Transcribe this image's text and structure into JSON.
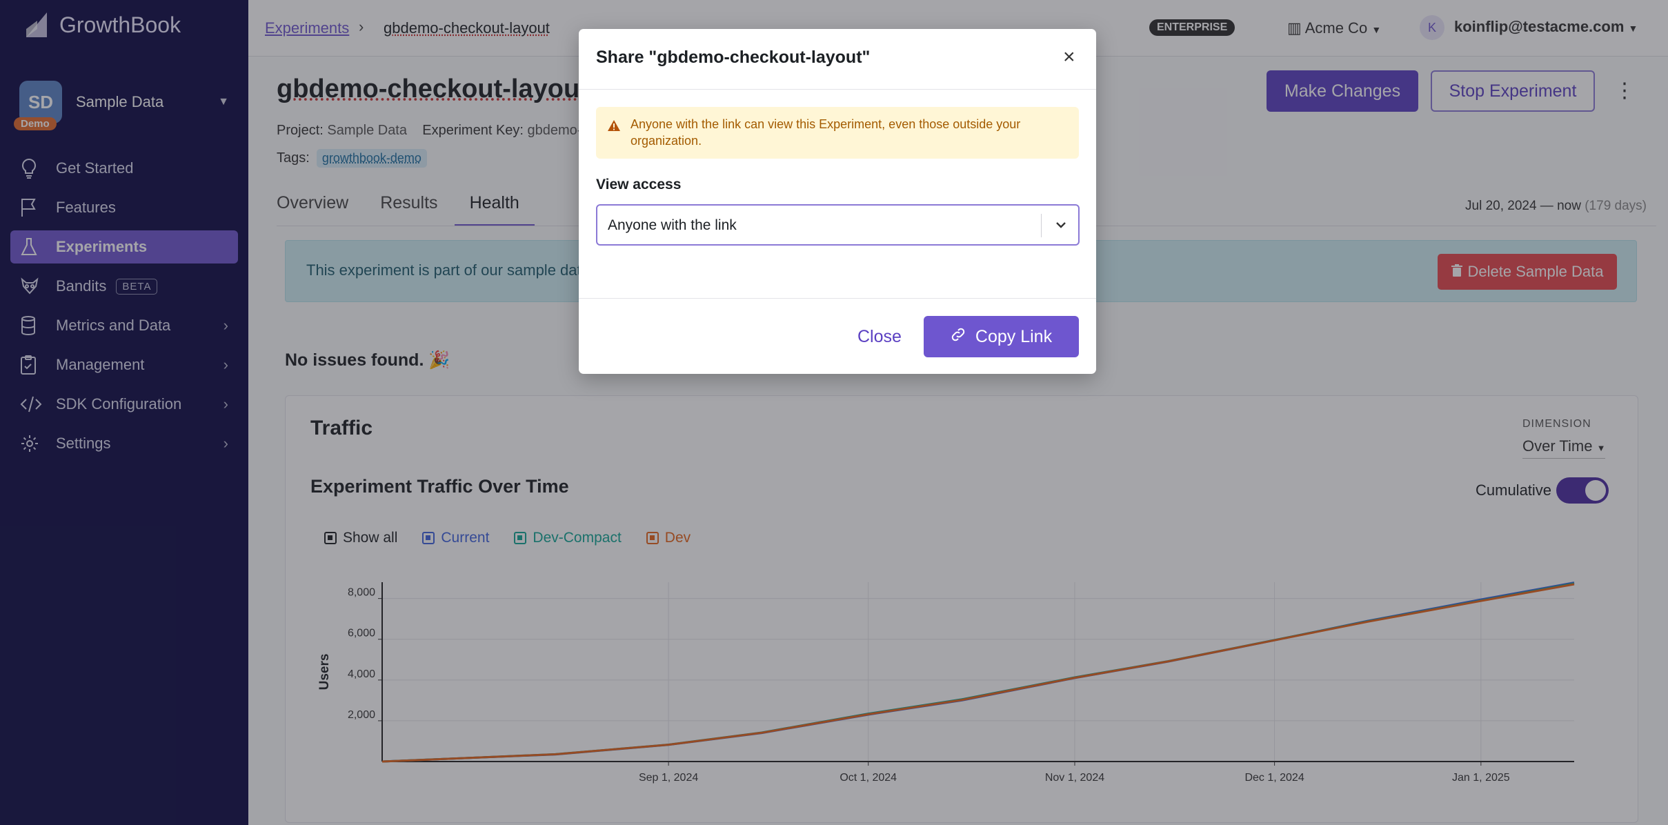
{
  "app": {
    "name": "GrowthBook"
  },
  "org": {
    "initials": "SD",
    "name": "Sample Data",
    "badge": "Demo"
  },
  "sidebar": {
    "items": [
      {
        "label": "Get Started",
        "icon": "lightbulb-icon"
      },
      {
        "label": "Features",
        "icon": "flag-icon"
      },
      {
        "label": "Experiments",
        "icon": "flask-icon"
      },
      {
        "label": "Bandits",
        "icon": "raccoon-icon",
        "badge": "BETA"
      },
      {
        "label": "Metrics and Data",
        "icon": "database-icon"
      },
      {
        "label": "Management",
        "icon": "clipboard-icon"
      },
      {
        "label": "SDK Configuration",
        "icon": "code-icon"
      },
      {
        "label": "Settings",
        "icon": "gear-icon"
      }
    ]
  },
  "topbar": {
    "breadcrumb_link": "Experiments",
    "breadcrumb_current": "gbdemo-checkout-layout",
    "plan_badge": "ENTERPRISE",
    "org_switcher": "Acme Co",
    "user_initial": "K",
    "user_email": "koinflip@testacme.com"
  },
  "experiment": {
    "title": "gbdemo-checkout-layout",
    "project_label": "Project:",
    "project_value": "Sample Data",
    "key_label": "Experiment Key:",
    "key_value": "gbdemo-checkout-layout",
    "tags_label": "Tags:",
    "tag": "growthbook-demo",
    "make_changes": "Make Changes",
    "stop": "Stop Experiment"
  },
  "tabs": [
    {
      "label": "Overview"
    },
    {
      "label": "Results"
    },
    {
      "label": "Health"
    }
  ],
  "date_range": {
    "text": "Jul 20, 2024 — now",
    "days": "(179 days)"
  },
  "banner": {
    "text": "This experiment is part of our sample data",
    "delete_button": "Delete Sample Data"
  },
  "health": {
    "no_issues": "No issues found. 🎉"
  },
  "traffic": {
    "title": "Traffic",
    "dimension_label": "DIMENSION",
    "dimension_value": "Over Time",
    "chart_title": "Experiment Traffic Over Time",
    "cumulative_label": "Cumulative",
    "cumulative_on": true,
    "legend": [
      {
        "label": "Show all",
        "color": "#1c2024"
      },
      {
        "label": "Current",
        "color": "#3e63dd"
      },
      {
        "label": "Dev-Compact",
        "color": "#12a594"
      },
      {
        "label": "Dev",
        "color": "#e5651a"
      }
    ]
  },
  "chart_data": {
    "type": "line",
    "ylabel": "Users",
    "xlabel": "",
    "ylim": [
      0,
      8800
    ],
    "yticks": [
      2000,
      4000,
      6000,
      8000
    ],
    "ytick_labels": [
      "2,000",
      "4,000",
      "6,000",
      "8,000"
    ],
    "xticks": [
      "2024-09-01",
      "2024-10-01",
      "2024-11-01",
      "2024-12-01",
      "2025-01-01"
    ],
    "xtick_labels": [
      "Sep 1, 2024",
      "Oct 1, 2024",
      "Nov 1, 2024",
      "Dec 1, 2024",
      "Jan 1, 2025"
    ],
    "xlim": [
      "2024-07-20",
      "2025-01-15"
    ],
    "x": [
      "2024-07-20",
      "2024-08-15",
      "2024-09-01",
      "2024-09-15",
      "2024-10-01",
      "2024-10-15",
      "2024-11-01",
      "2024-11-15",
      "2024-12-01",
      "2024-12-15",
      "2025-01-01",
      "2025-01-15"
    ],
    "series": [
      {
        "name": "Current",
        "color": "#3e63dd",
        "values": [
          0,
          350,
          820,
          1400,
          2300,
          3000,
          4100,
          4900,
          5950,
          6900,
          7950,
          8780
        ]
      },
      {
        "name": "Dev-Compact",
        "color": "#12a594",
        "values": [
          0,
          360,
          830,
          1420,
          2350,
          3050,
          4130,
          4920,
          5960,
          6880,
          7900,
          8740
        ]
      },
      {
        "name": "Dev",
        "color": "#e5651a",
        "values": [
          0,
          355,
          825,
          1410,
          2320,
          3020,
          4110,
          4910,
          5950,
          6860,
          7880,
          8700
        ]
      }
    ]
  },
  "modal": {
    "title": "Share \"gbdemo-checkout-layout\"",
    "warning": "Anyone with the link can view this Experiment, even those outside your organization.",
    "view_access_label": "View access",
    "view_access_value": "Anyone with the link",
    "close_label": "Close",
    "copy_label": "Copy Link"
  }
}
